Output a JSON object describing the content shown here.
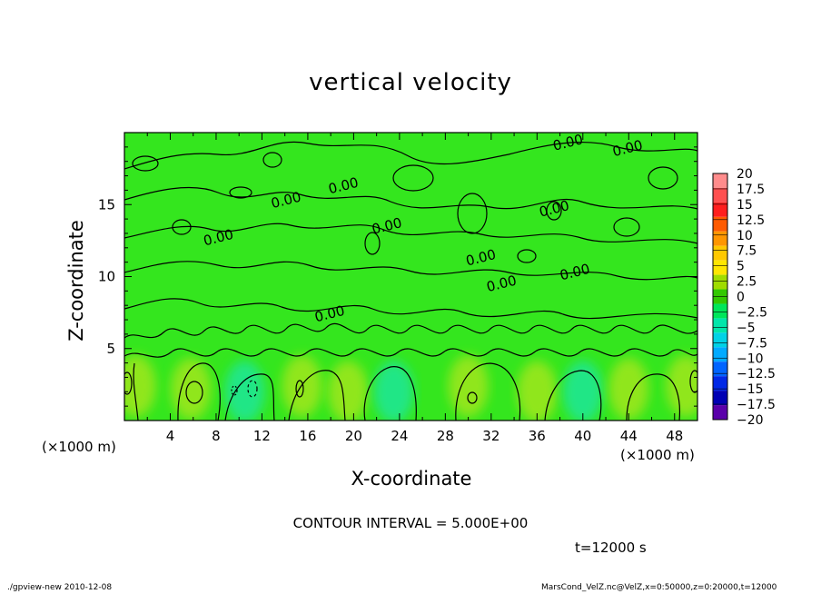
{
  "chart_data": {
    "type": "heatmap",
    "title": "vertical velocity",
    "xlabel": "X-coordinate",
    "ylabel": "Z-coordinate",
    "x_unit": "(×1000 m)",
    "y_unit": "(×1000 m)",
    "xlim": [
      0,
      50
    ],
    "ylim": [
      0,
      20
    ],
    "x_ticks": [
      4,
      8,
      12,
      16,
      20,
      24,
      28,
      32,
      36,
      40,
      44,
      48
    ],
    "y_ticks": [
      5,
      10,
      15
    ],
    "contour_labels": [
      "0.00",
      "0.00",
      "0.00",
      "0.00",
      "0.00",
      "0.00",
      "0.00",
      "0.00",
      "0.00",
      "0.00",
      "0.00"
    ],
    "colorbar": {
      "levels": [
        "20",
        "17.5",
        "15",
        "12.5",
        "10",
        "7.5",
        "5",
        "2.5",
        "0",
        "−2.5",
        "−5",
        "−7.5",
        "−10",
        "−12.5",
        "−15",
        "−17.5",
        "−20"
      ],
      "colors": [
        "#ff8c8c",
        "#ff5050",
        "#ff1e1e",
        "#ff5a00",
        "#ff9600",
        "#ffc800",
        "#ffe600",
        "#a0dc00",
        "#32c800",
        "#00e65a",
        "#00e6aa",
        "#00d2e6",
        "#00aaff",
        "#0064ff",
        "#0028e6",
        "#0000b4",
        "#5a00aa"
      ]
    },
    "contour_interval": "CONTOUR INTERVAL = 5.000E+00",
    "time": "t=12000 s"
  },
  "footer": {
    "left": "./gpview-new   2010-12-08",
    "right": "MarsCond_VelZ.nc@VelZ,x=0:50000,z=0:20000,t=12000"
  },
  "colors": {
    "field_base": "#34e61e",
    "positive_blob": "#a8e61e",
    "negative_blob": "#1ee6a0"
  }
}
